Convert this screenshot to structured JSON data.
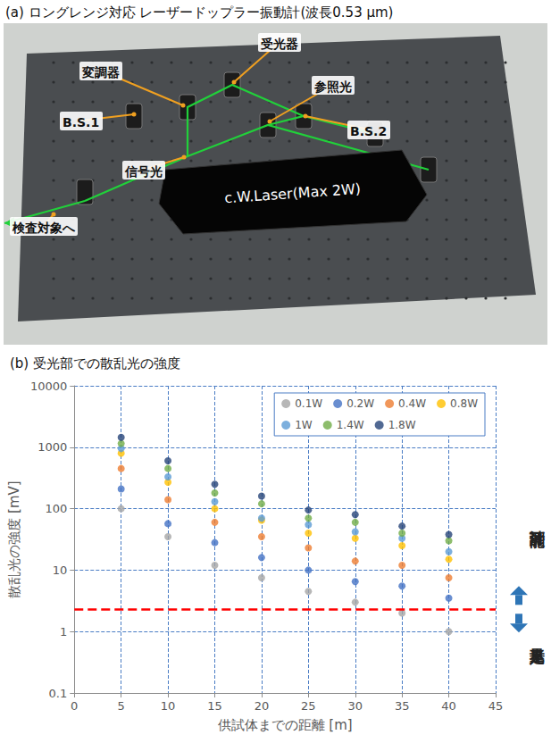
{
  "photo_panel": {
    "title": "(a) ロングレンジ対応 レーザードップラー振動計(波長0.53 μm)",
    "labels": [
      "受光器",
      "変調器",
      "参照光",
      "B.S.1",
      "B.S.2",
      "信号光",
      "検査対象へ"
    ],
    "laser": "c.W.Laser(Max 2W)"
  },
  "chart_data": {
    "type": "scatter",
    "title": "(b) 受光部での散乱光の強度",
    "x_label": "供試体までの距離 [m]",
    "y_label": "散乱光の強度 [mV]",
    "x": [
      5,
      10,
      15,
      20,
      25,
      30,
      35,
      40
    ],
    "series": [
      {
        "name": "0.1W",
        "color": "#a5a5a5",
        "values": [
          100,
          35,
          12,
          7.5,
          4.5,
          3,
          2,
          1
        ]
      },
      {
        "name": "0.2W",
        "color": "#4472c4",
        "values": [
          210,
          57,
          28,
          16,
          10,
          6.5,
          5.5,
          3.5
        ]
      },
      {
        "name": "0.4W",
        "color": "#ed7d31",
        "values": [
          450,
          140,
          60,
          35,
          23,
          14,
          12,
          7.5
        ]
      },
      {
        "name": "0.8W",
        "color": "#ffc000",
        "values": [
          800,
          270,
          100,
          65,
          40,
          33,
          25,
          15
        ]
      },
      {
        "name": "1W",
        "color": "#5b9bd5",
        "values": [
          950,
          330,
          130,
          70,
          55,
          42,
          33,
          20
        ]
      },
      {
        "name": "1.4W",
        "color": "#70ad47",
        "values": [
          1150,
          450,
          180,
          120,
          70,
          60,
          40,
          30
        ]
      },
      {
        "name": "1.8W",
        "color": "#264478",
        "values": [
          1450,
          600,
          250,
          160,
          95,
          80,
          52,
          38
        ]
      }
    ],
    "marker": "circle",
    "xlim": [
      0,
      45
    ],
    "xticks": [
      0,
      5,
      10,
      15,
      20,
      25,
      30,
      35,
      40,
      45
    ],
    "ylim": [
      0.1,
      10000
    ],
    "yticks": [
      0.1,
      1,
      10,
      100,
      1000,
      10000
    ],
    "log": "y",
    "grid": true,
    "legend": "upper right",
    "threshold": 2.3,
    "threshold_color": "#ff0000",
    "annotations": [
      {
        "text": "計測可能",
        "direction": "up",
        "color": "#2e75b6"
      },
      {
        "text": "光量不足",
        "direction": "down",
        "color": "#2e75b6"
      }
    ]
  }
}
